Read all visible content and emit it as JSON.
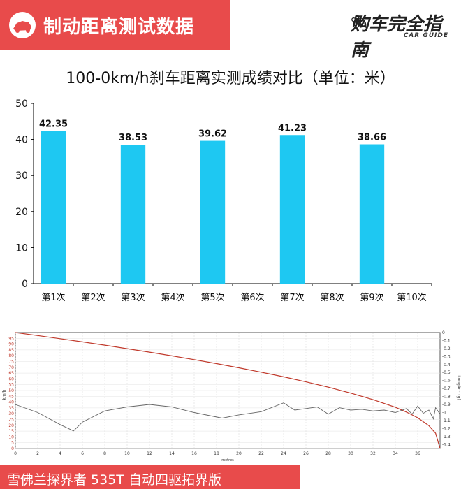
{
  "header": {
    "title": "制动距离测试数据",
    "brand_name": "购车完全指南",
    "brand_sub": "CAR GUIDE",
    "brand_color": "#e84b4b"
  },
  "chart_data": [
    {
      "type": "bar",
      "title": "100-0km/h刹车距离实测成绩对比（单位：米）",
      "categories": [
        "第1次",
        "第2次",
        "第3次",
        "第4次",
        "第5次",
        "第6次",
        "第7次",
        "第8次",
        "第9次",
        "第10次"
      ],
      "values": [
        42.35,
        null,
        38.53,
        null,
        39.62,
        null,
        41.23,
        null,
        38.66,
        null
      ],
      "data_labels": [
        "42.35",
        "",
        "38.53",
        "",
        "39.62",
        "",
        "41.23",
        "",
        "38.66",
        ""
      ],
      "ylim": [
        0,
        50
      ],
      "yticks": [
        0,
        10,
        20,
        30,
        40,
        50
      ],
      "bar_color": "#1ec8f2",
      "grid": false
    },
    {
      "type": "line",
      "x_label": "metres",
      "y_left_label": "km/h",
      "y_right_label": "LongAcc (g)",
      "xlim": [
        0,
        38
      ],
      "xticks": [
        0,
        2,
        4,
        6,
        8,
        10,
        12,
        14,
        16,
        18,
        20,
        22,
        24,
        26,
        28,
        30,
        32,
        34,
        36
      ],
      "ylim_left": [
        0,
        100
      ],
      "yticks_left": [
        0,
        5,
        10,
        15,
        20,
        25,
        30,
        35,
        40,
        45,
        50,
        55,
        60,
        65,
        70,
        75,
        80,
        85,
        90,
        95
      ],
      "ylim_right": [
        -1.45,
        0
      ],
      "yticks_right": [
        "0",
        "-0.1",
        "-0.2",
        "-0.3",
        "-0.4",
        "-0.5",
        "-0.6",
        "-0.7",
        "-0.8",
        "-0.9",
        "-1",
        "-1.1",
        "-1.2",
        "-1.3",
        "-1.4"
      ],
      "series": [
        {
          "axis": "left",
          "color": "#c0392b",
          "x": [
            0,
            2,
            4,
            6,
            8,
            10,
            12,
            14,
            16,
            18,
            20,
            22,
            24,
            26,
            28,
            30,
            32,
            34,
            35,
            36,
            37,
            37.6,
            38
          ],
          "y": [
            100,
            97.4,
            94.7,
            91.9,
            89.1,
            86.1,
            83.1,
            79.9,
            76.6,
            73.2,
            69.6,
            65.8,
            61.8,
            57.5,
            52.9,
            47.8,
            42.1,
            35.6,
            31.4,
            26.5,
            19.7,
            13.2,
            0
          ]
        },
        {
          "axis": "right",
          "color": "#666666",
          "x": [
            0,
            2,
            4,
            5.2,
            6,
            8,
            10,
            12,
            14,
            16,
            18.5,
            20,
            22,
            24,
            25,
            26,
            27,
            28,
            29,
            30,
            31,
            32,
            33,
            34,
            35,
            35.5,
            36,
            36.5,
            37,
            37.4,
            37.6,
            38
          ],
          "y": [
            -0.9,
            -1.0,
            -1.15,
            -1.23,
            -1.12,
            -0.98,
            -0.93,
            -0.9,
            -0.93,
            -1.0,
            -1.07,
            -1.03,
            -0.99,
            -0.88,
            -0.97,
            -0.95,
            -0.93,
            -1.02,
            -0.94,
            -0.97,
            -0.96,
            -0.98,
            -0.97,
            -1.0,
            -0.95,
            -1.02,
            -0.92,
            -1.01,
            -0.97,
            -1.08,
            -0.94,
            -1.02
          ]
        }
      ]
    }
  ],
  "footer": {
    "text": "雪佛兰探界者 535T 自动四驱拓界版"
  }
}
